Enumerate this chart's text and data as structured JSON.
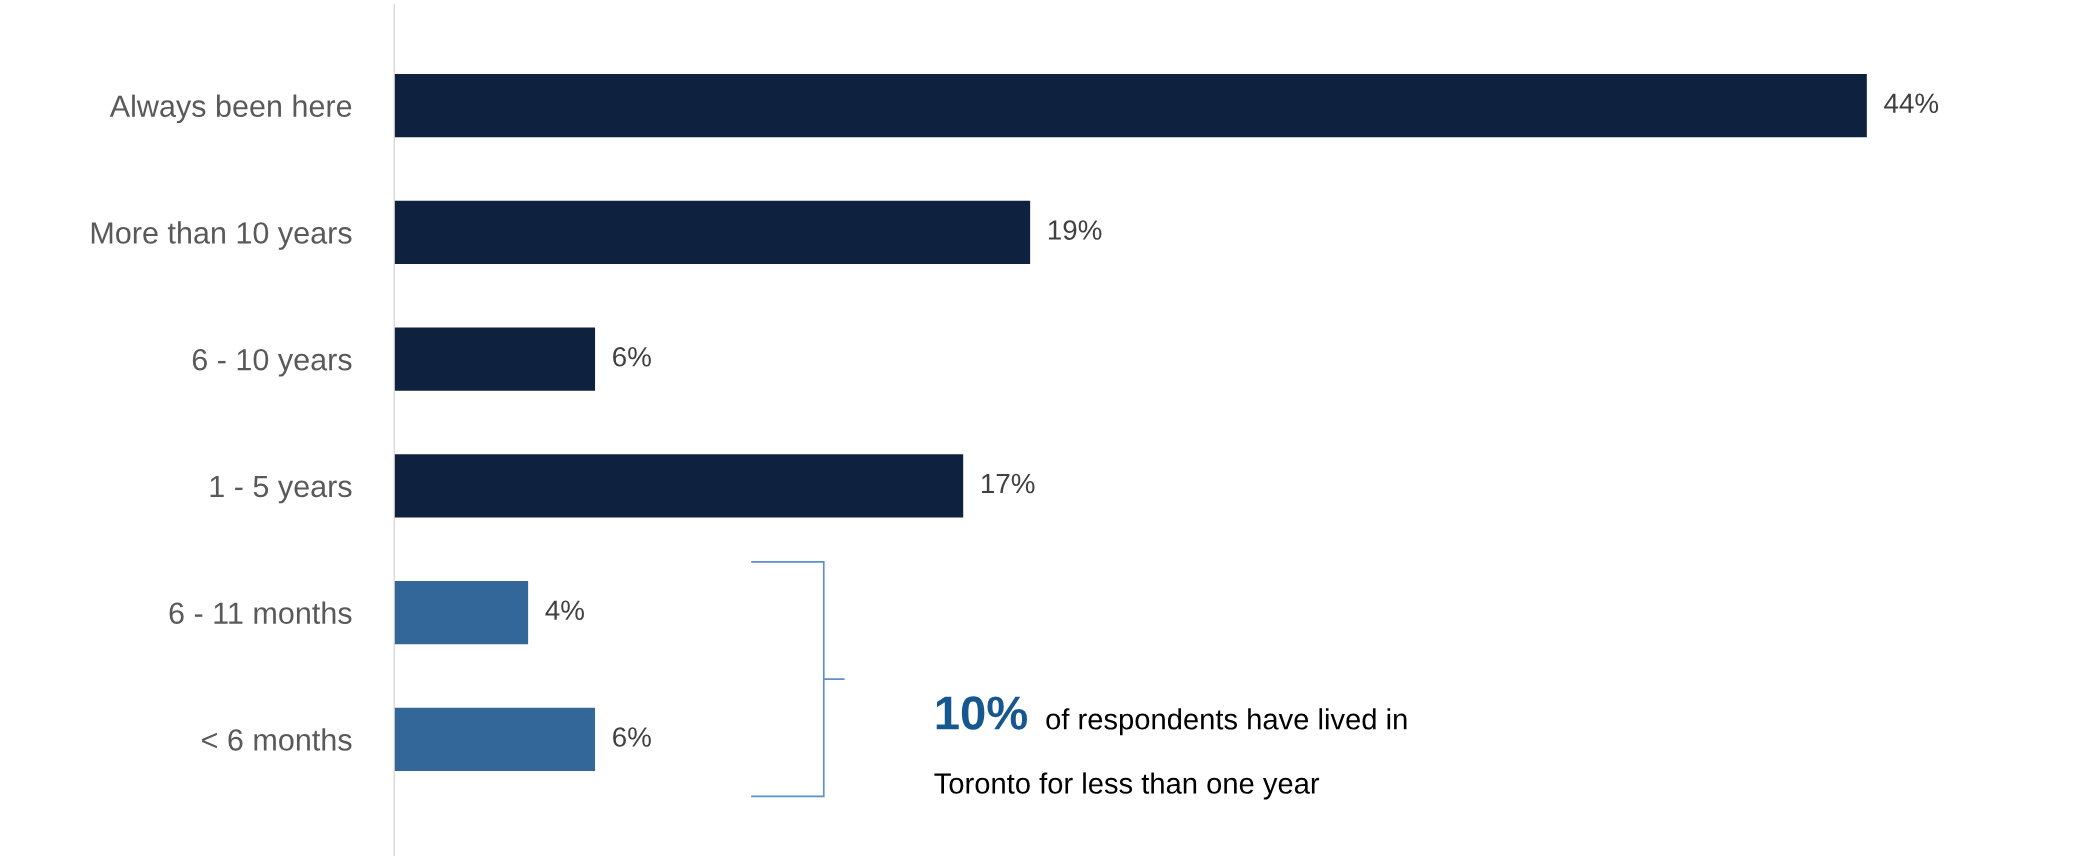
{
  "chart_data": {
    "type": "bar",
    "orientation": "horizontal",
    "categories": [
      "Always been here",
      "More than 10 years",
      "6 - 10 years",
      "1 - 5 years",
      "6 - 11 months",
      "< 6 months"
    ],
    "values": [
      44,
      19,
      6,
      17,
      4,
      6
    ],
    "colors": [
      "#0e2240",
      "#0e2240",
      "#0e2240",
      "#0e2240",
      "#336699",
      "#336699"
    ],
    "data_labels": true,
    "value_labels": [
      "44%",
      "19%",
      "6%",
      "17%",
      "4%",
      "6%"
    ],
    "tick_labels": "y",
    "grid": false,
    "legend": false,
    "annotations": [
      "10%",
      "of respondents have lived in\nToronto for less than one year"
    ]
  }
}
